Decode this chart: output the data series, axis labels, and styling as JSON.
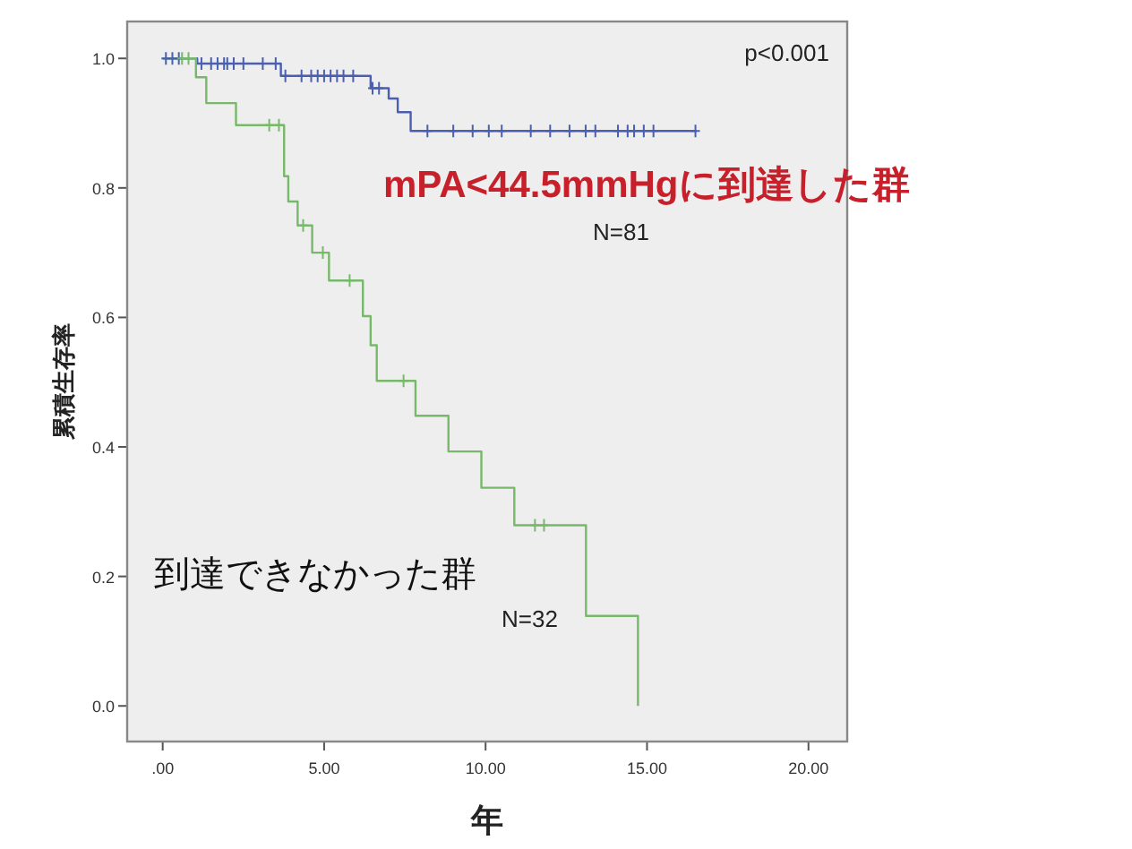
{
  "chart_data": {
    "type": "step",
    "ylabel": "累積生存率",
    "xlabel": "年",
    "xlim": [
      -1.1,
      21.2
    ],
    "ylim": [
      -0.055,
      1.057
    ],
    "xticks": [
      {
        "value": 0,
        "label": ".00"
      },
      {
        "value": 5,
        "label": "5.00"
      },
      {
        "value": 10,
        "label": "10.00"
      },
      {
        "value": 15,
        "label": "15.00"
      },
      {
        "value": 20,
        "label": "20.00"
      }
    ],
    "yticks": [
      {
        "value": 0,
        "label": "0.0"
      },
      {
        "value": 0.2,
        "label": "0.2"
      },
      {
        "value": 0.4,
        "label": "0.4"
      },
      {
        "value": 0.6,
        "label": "0.6"
      },
      {
        "value": 0.8,
        "label": "0.8"
      },
      {
        "value": 1,
        "label": "1.0"
      }
    ],
    "grid": false,
    "annotations": [
      "p<0.001",
      "N=81",
      "N=32"
    ],
    "series": [
      {
        "name": "mPA<44.5mmHgに到達した群",
        "color": "#4b5fb0",
        "x": [
          0,
          1.07,
          3.66,
          6.44,
          7.0,
          7.28,
          7.68,
          16.53
        ],
        "values": [
          1,
          0.992,
          0.973,
          0.954,
          0.938,
          0.917,
          0.888,
          0.888
        ]
      },
      {
        "name": "到達できなかった群",
        "color": "#78b86a",
        "x": [
          0,
          1.03,
          1.35,
          2.27,
          3.76,
          3.89,
          4.18,
          4.63,
          5.15,
          6.2,
          6.44,
          6.63,
          7.83,
          8.85,
          9.87,
          10.89,
          13.11,
          14.72,
          14.72
        ],
        "values": [
          1,
          0.971,
          0.931,
          0.897,
          0.818,
          0.779,
          0.742,
          0.7,
          0.657,
          0.602,
          0.557,
          0.502,
          0.448,
          0.393,
          0.337,
          0.279,
          0.139,
          0.139,
          0
        ]
      },
      {
        "type": "scatter",
        "marker": "cross",
        "color": "#4b5fb0",
        "x": [
          0.1,
          0.3,
          0.5,
          1.2,
          1.5,
          1.7,
          1.9,
          2.0,
          2.2,
          2.5,
          3.1,
          3.5,
          3.8,
          4.3,
          4.6,
          4.8,
          5.0,
          5.2,
          5.4,
          5.6,
          5.9,
          6.5,
          6.7,
          8.2,
          9.0,
          9.6,
          10.1,
          10.5,
          11.4,
          12.0,
          12.6,
          13.1,
          13.4,
          14.1,
          14.4,
          14.6,
          14.9,
          15.2,
          16.5
        ],
        "values": [
          1,
          1,
          1,
          0.992,
          0.992,
          0.992,
          0.992,
          0.992,
          0.992,
          0.992,
          0.992,
          0.992,
          0.973,
          0.973,
          0.973,
          0.973,
          0.973,
          0.973,
          0.973,
          0.973,
          0.973,
          0.954,
          0.954,
          0.888,
          0.888,
          0.888,
          0.888,
          0.888,
          0.888,
          0.888,
          0.888,
          0.888,
          0.888,
          0.888,
          0.888,
          0.888,
          0.888,
          0.888,
          0.888
        ]
      },
      {
        "type": "scatter",
        "marker": "cross",
        "color": "#78b86a",
        "x": [
          0.6,
          0.8,
          3.3,
          3.6,
          4.35,
          4.96,
          5.79,
          7.46,
          11.53,
          11.81
        ],
        "values": [
          1,
          1,
          0.897,
          0.897,
          0.742,
          0.7,
          0.657,
          0.502,
          0.279,
          0.279
        ]
      }
    ]
  }
}
